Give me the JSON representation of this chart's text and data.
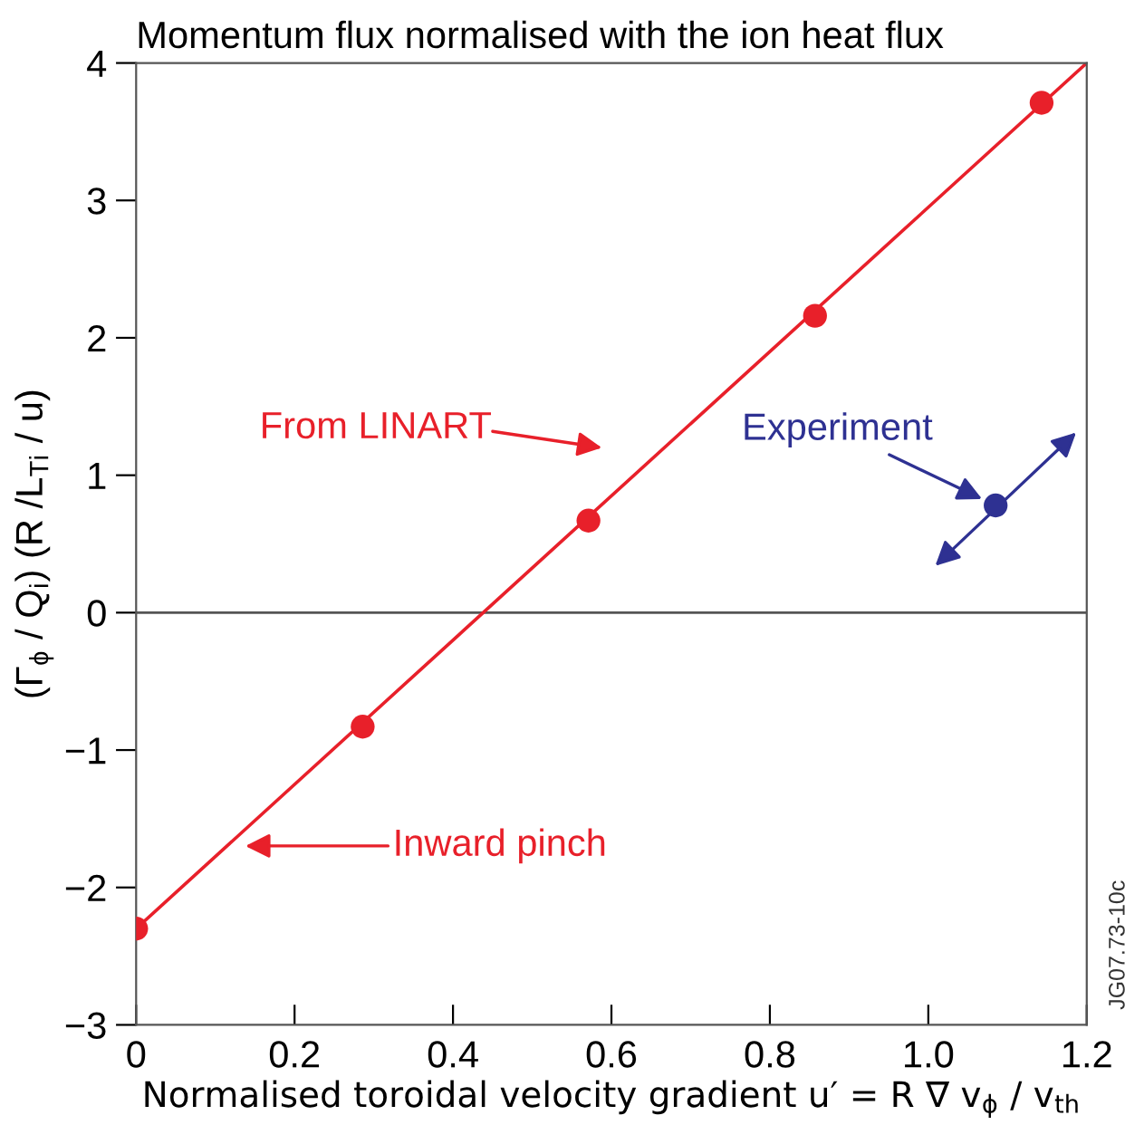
{
  "chart_data": {
    "type": "scatter",
    "title": "Momentum flux normalised with the ion heat flux",
    "xlabel": "Normalised toroidal velocity gradient u′ = R ∇ v$_{ϕ}$ / v$_{th}$",
    "ylabel": "(Γ$_{ϕ}$ / Q$_{i}$) (R /L$_{Ti}$ / u)",
    "series": [
      {
        "type": "line",
        "color": "#e8202a",
        "x": [
          0,
          1.2
        ],
        "values": [
          -2.3,
          4
        ],
        "marker": "none",
        "line_style": "solid"
      },
      {
        "color": "#e8202a",
        "x": [
          0,
          0.286,
          0.571,
          0.857,
          1.143
        ],
        "values": [
          -2.3,
          -0.83,
          0.67,
          2.16,
          3.71
        ],
        "marker": "circle"
      },
      {
        "color": "#2e3192",
        "x": [
          1.085
        ],
        "values": [
          0.78
        ],
        "marker": "circle"
      }
    ],
    "annotations": [
      "From LINART",
      "Inward pinch",
      {
        "text": "Experiment",
        "x": 1.085,
        "y": 0.78
      },
      "JG07.73-10c"
    ],
    "ref_lines": [
      {
        "axis": "y",
        "value": 0,
        "color": "#555555"
      }
    ],
    "xlim": [
      0,
      1.2
    ],
    "ylim": [
      -3,
      4
    ],
    "xticks": [
      0,
      0.2,
      0.4,
      0.6,
      0.8,
      {
        "value": 1.0,
        "label": "1.0"
      },
      1.2
    ],
    "yticks": [
      {
        "value": -3,
        "label": "−3"
      },
      {
        "value": -2,
        "label": "−2"
      },
      {
        "value": -1,
        "label": "−1"
      },
      0,
      1,
      2,
      3,
      4
    ],
    "grid": false,
    "legend": false
  }
}
